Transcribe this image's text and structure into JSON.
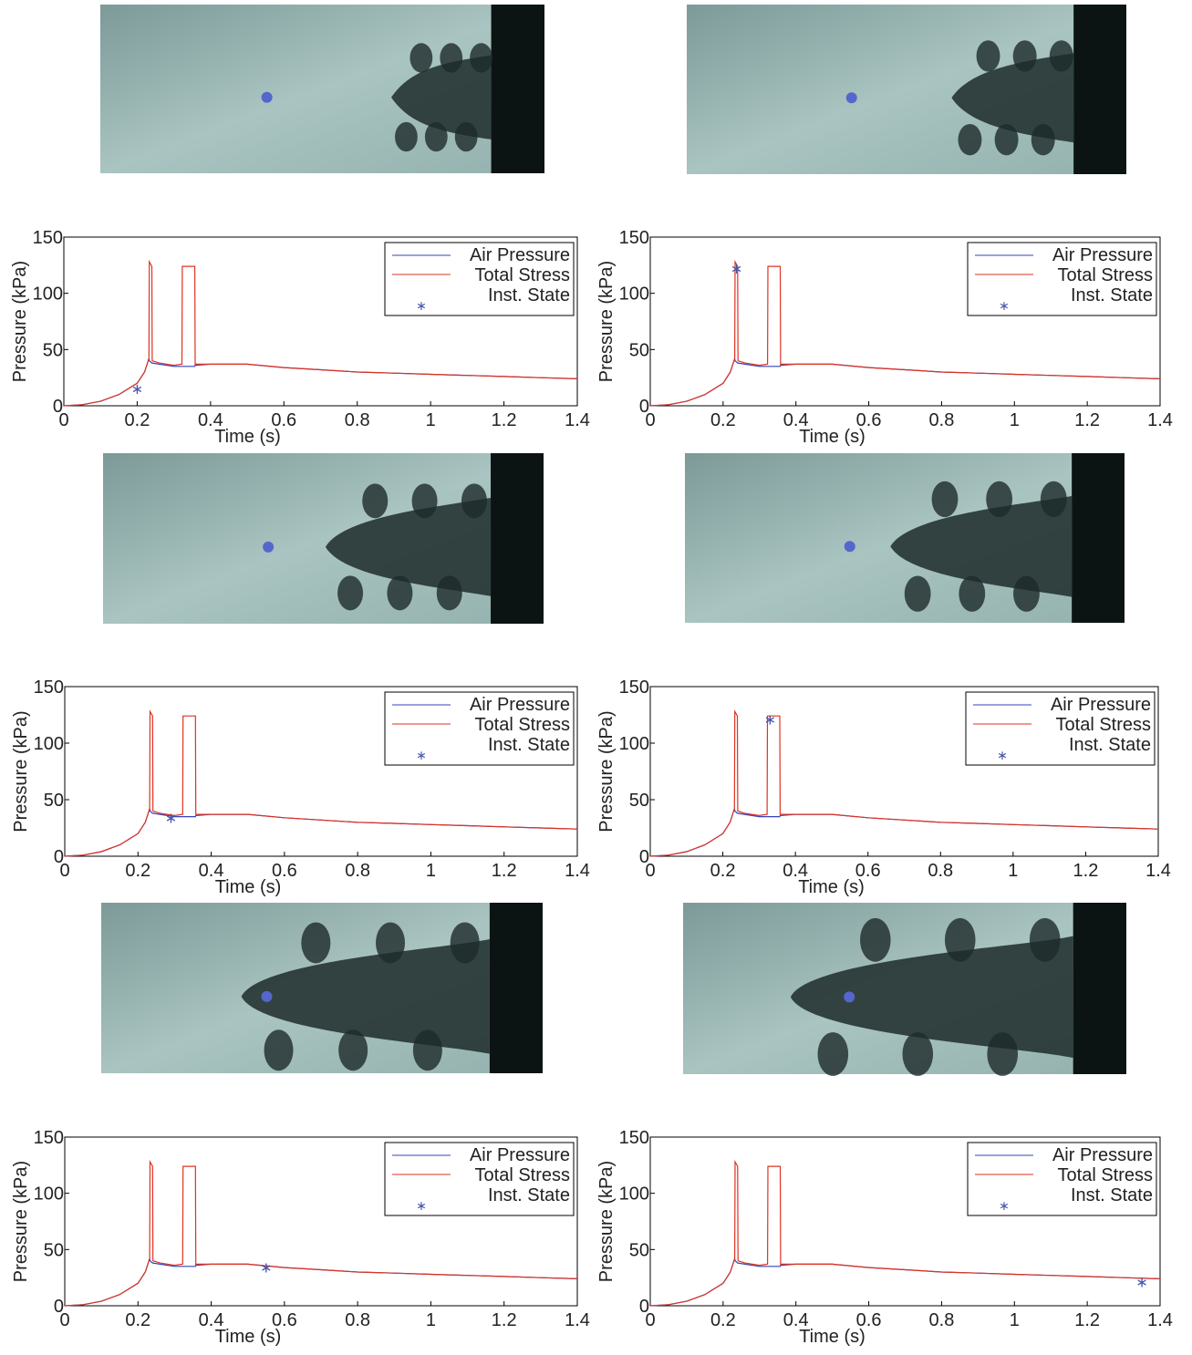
{
  "chart_data": [
    {
      "type": "line",
      "xlabel": "Time (s)",
      "ylabel": "Pressure (kPa)",
      "xlim": [
        0,
        1.4
      ],
      "ylim": [
        0,
        150
      ],
      "xticks": [
        0,
        0.2,
        0.4,
        0.6,
        0.8,
        1,
        1.2,
        1.4
      ],
      "yticks": [
        0,
        50,
        100,
        150
      ],
      "legend": "upper right",
      "x": [
        0,
        0.05,
        0.1,
        0.15,
        0.2,
        0.22,
        0.232,
        0.233,
        0.24,
        0.241,
        0.26,
        0.3,
        0.322,
        0.323,
        0.357,
        0.358,
        0.4,
        0.5,
        0.6,
        0.7,
        0.8,
        0.9,
        1.0,
        1.1,
        1.2,
        1.3,
        1.4
      ],
      "series": [
        {
          "name": "Air Pressure",
          "color": "#3344bb",
          "values": [
            0,
            1,
            4,
            10,
            20,
            30,
            42,
            40,
            38,
            38,
            37,
            35,
            35,
            35,
            35,
            36,
            37,
            37,
            34,
            32,
            30,
            29,
            28,
            27,
            26,
            25,
            24
          ]
        },
        {
          "name": "Total Stress",
          "color": "#dd3322",
          "values": [
            0,
            1,
            4,
            10,
            20,
            30,
            42,
            128,
            124,
            40,
            38,
            36,
            37,
            124,
            124,
            37,
            37,
            37,
            34,
            32,
            30,
            29,
            28,
            27,
            26,
            25,
            24
          ]
        },
        {
          "name": "Inst. State",
          "color": "#4455aa",
          "marker": "*",
          "x": [
            0.2
          ],
          "values": [
            17
          ]
        }
      ]
    },
    {
      "type": "line",
      "xlabel": "Time (s)",
      "ylabel": "Pressure (kPa)",
      "xlim": [
        0,
        1.4
      ],
      "ylim": [
        0,
        150
      ],
      "xticks": [
        0,
        0.2,
        0.4,
        0.6,
        0.8,
        1,
        1.2,
        1.4
      ],
      "yticks": [
        0,
        50,
        100,
        150
      ],
      "legend": "upper right",
      "x": [
        0,
        0.05,
        0.1,
        0.15,
        0.2,
        0.22,
        0.232,
        0.233,
        0.24,
        0.241,
        0.26,
        0.3,
        0.322,
        0.323,
        0.357,
        0.358,
        0.4,
        0.5,
        0.6,
        0.7,
        0.8,
        0.9,
        1.0,
        1.1,
        1.2,
        1.3,
        1.4
      ],
      "series": [
        {
          "name": "Air Pressure",
          "color": "#3344bb",
          "values": [
            0,
            1,
            4,
            10,
            20,
            30,
            42,
            40,
            38,
            38,
            37,
            35,
            35,
            35,
            35,
            36,
            37,
            37,
            34,
            32,
            30,
            29,
            28,
            27,
            26,
            25,
            24
          ]
        },
        {
          "name": "Total Stress",
          "color": "#dd3322",
          "values": [
            0,
            1,
            4,
            10,
            20,
            30,
            42,
            128,
            124,
            40,
            38,
            36,
            37,
            124,
            124,
            37,
            37,
            37,
            34,
            32,
            30,
            29,
            28,
            27,
            26,
            25,
            24
          ]
        },
        {
          "name": "Inst. State",
          "color": "#4455aa",
          "marker": "*",
          "x": [
            0.237
          ],
          "values": [
            124
          ]
        }
      ]
    },
    {
      "type": "line",
      "xlabel": "Time (s)",
      "ylabel": "Pressure (kPa)",
      "xlim": [
        0,
        1.4
      ],
      "ylim": [
        0,
        150
      ],
      "xticks": [
        0,
        0.2,
        0.4,
        0.6,
        0.8,
        1,
        1.2,
        1.4
      ],
      "yticks": [
        0,
        50,
        100,
        150
      ],
      "legend": "upper right",
      "x": [
        0,
        0.05,
        0.1,
        0.15,
        0.2,
        0.22,
        0.232,
        0.233,
        0.24,
        0.241,
        0.26,
        0.3,
        0.322,
        0.323,
        0.357,
        0.358,
        0.4,
        0.5,
        0.6,
        0.7,
        0.8,
        0.9,
        1.0,
        1.1,
        1.2,
        1.3,
        1.4
      ],
      "series": [
        {
          "name": "Air Pressure",
          "color": "#3344bb",
          "values": [
            0,
            1,
            4,
            10,
            20,
            30,
            42,
            40,
            38,
            38,
            37,
            35,
            35,
            35,
            35,
            36,
            37,
            37,
            34,
            32,
            30,
            29,
            28,
            27,
            26,
            25,
            24
          ]
        },
        {
          "name": "Total Stress",
          "color": "#dd3322",
          "values": [
            0,
            1,
            4,
            10,
            20,
            30,
            42,
            128,
            124,
            40,
            38,
            36,
            37,
            124,
            124,
            37,
            37,
            37,
            34,
            32,
            30,
            29,
            28,
            27,
            26,
            25,
            24
          ]
        },
        {
          "name": "Inst. State",
          "color": "#4455aa",
          "marker": "*",
          "x": [
            0.29
          ],
          "values": [
            36
          ]
        }
      ]
    },
    {
      "type": "line",
      "xlabel": "Time (s)",
      "ylabel": "Pressure (kPa)",
      "xlim": [
        0,
        1.4
      ],
      "ylim": [
        0,
        150
      ],
      "xticks": [
        0,
        0.2,
        0.4,
        0.6,
        0.8,
        1,
        1.2,
        1.4
      ],
      "yticks": [
        0,
        50,
        100,
        150
      ],
      "legend": "upper right",
      "x": [
        0,
        0.05,
        0.1,
        0.15,
        0.2,
        0.22,
        0.232,
        0.233,
        0.24,
        0.241,
        0.26,
        0.3,
        0.322,
        0.323,
        0.357,
        0.358,
        0.4,
        0.5,
        0.6,
        0.7,
        0.8,
        0.9,
        1.0,
        1.1,
        1.2,
        1.3,
        1.4
      ],
      "series": [
        {
          "name": "Air Pressure",
          "color": "#3344bb",
          "values": [
            0,
            1,
            4,
            10,
            20,
            30,
            42,
            40,
            38,
            38,
            37,
            35,
            35,
            35,
            35,
            36,
            37,
            37,
            34,
            32,
            30,
            29,
            28,
            27,
            26,
            25,
            24
          ]
        },
        {
          "name": "Total Stress",
          "color": "#dd3322",
          "values": [
            0,
            1,
            4,
            10,
            20,
            30,
            42,
            128,
            124,
            40,
            38,
            36,
            37,
            124,
            124,
            37,
            37,
            37,
            34,
            32,
            30,
            29,
            28,
            27,
            26,
            25,
            24
          ]
        },
        {
          "name": "Inst. State",
          "color": "#4455aa",
          "marker": "*",
          "x": [
            0.33
          ],
          "values": [
            123
          ]
        }
      ]
    },
    {
      "type": "line",
      "xlabel": "Time (s)",
      "ylabel": "Pressure (kPa)",
      "xlim": [
        0,
        1.4
      ],
      "ylim": [
        0,
        150
      ],
      "xticks": [
        0,
        0.2,
        0.4,
        0.6,
        0.8,
        1,
        1.2,
        1.4
      ],
      "yticks": [
        0,
        50,
        100,
        150
      ],
      "legend": "upper right",
      "x": [
        0,
        0.05,
        0.1,
        0.15,
        0.2,
        0.22,
        0.232,
        0.233,
        0.24,
        0.241,
        0.26,
        0.3,
        0.322,
        0.323,
        0.357,
        0.358,
        0.4,
        0.5,
        0.6,
        0.7,
        0.8,
        0.9,
        1.0,
        1.1,
        1.2,
        1.3,
        1.4
      ],
      "series": [
        {
          "name": "Air Pressure",
          "color": "#3344bb",
          "values": [
            0,
            1,
            4,
            10,
            20,
            30,
            42,
            40,
            38,
            38,
            37,
            35,
            35,
            35,
            35,
            36,
            37,
            37,
            34,
            32,
            30,
            29,
            28,
            27,
            26,
            25,
            24
          ]
        },
        {
          "name": "Total Stress",
          "color": "#dd3322",
          "values": [
            0,
            1,
            4,
            10,
            20,
            30,
            42,
            128,
            124,
            40,
            38,
            36,
            37,
            124,
            124,
            37,
            37,
            37,
            34,
            32,
            30,
            29,
            28,
            27,
            26,
            25,
            24
          ]
        },
        {
          "name": "Inst. State",
          "color": "#4455aa",
          "marker": "*",
          "x": [
            0.55
          ],
          "values": [
            36
          ]
        }
      ]
    },
    {
      "type": "line",
      "xlabel": "Time (s)",
      "ylabel": "Pressure (kPa)",
      "xlim": [
        0,
        1.4
      ],
      "ylim": [
        0,
        150
      ],
      "xticks": [
        0,
        0.2,
        0.4,
        0.6,
        0.8,
        1,
        1.2,
        1.4
      ],
      "yticks": [
        0,
        50,
        100,
        150
      ],
      "legend": "upper right",
      "x": [
        0,
        0.05,
        0.1,
        0.15,
        0.2,
        0.22,
        0.232,
        0.233,
        0.24,
        0.241,
        0.26,
        0.3,
        0.322,
        0.323,
        0.357,
        0.358,
        0.4,
        0.5,
        0.6,
        0.7,
        0.8,
        0.9,
        1.0,
        1.1,
        1.2,
        1.3,
        1.4
      ],
      "series": [
        {
          "name": "Air Pressure",
          "color": "#3344bb",
          "values": [
            0,
            1,
            4,
            10,
            20,
            30,
            42,
            40,
            38,
            38,
            37,
            35,
            35,
            35,
            35,
            36,
            37,
            37,
            34,
            32,
            30,
            29,
            28,
            27,
            26,
            25,
            24
          ]
        },
        {
          "name": "Total Stress",
          "color": "#dd3322",
          "values": [
            0,
            1,
            4,
            10,
            20,
            30,
            42,
            128,
            124,
            40,
            38,
            36,
            37,
            124,
            124,
            37,
            37,
            37,
            34,
            32,
            30,
            29,
            28,
            27,
            26,
            25,
            24
          ]
        },
        {
          "name": "Inst. State",
          "color": "#4455aa",
          "marker": "*",
          "x": [
            1.35
          ],
          "values": [
            23
          ]
        }
      ]
    }
  ]
}
